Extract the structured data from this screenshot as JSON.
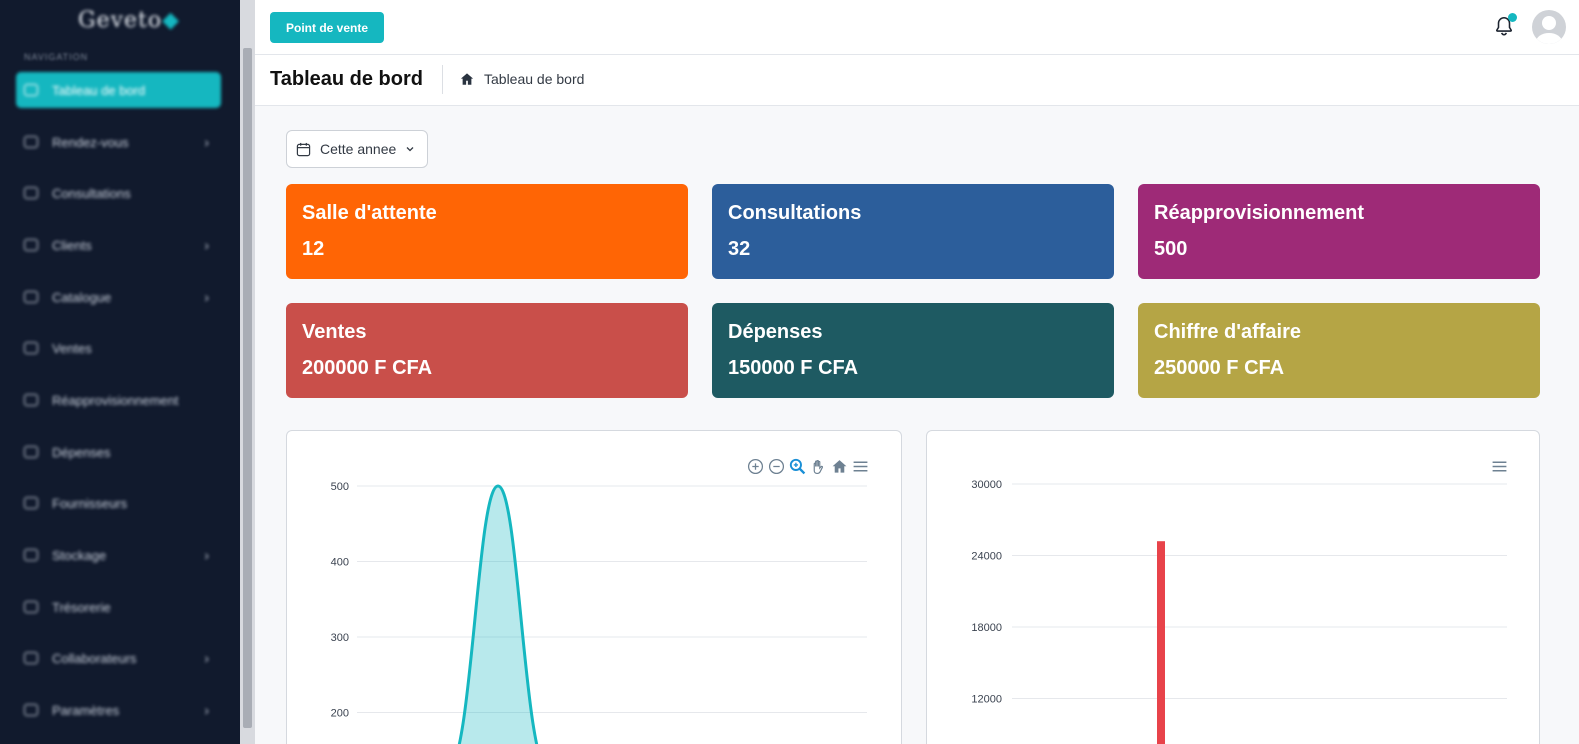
{
  "app": {
    "logo": "Geveto"
  },
  "sidebar": {
    "section": "NAVIGATION",
    "items": [
      {
        "label": "Tableau de bord",
        "active": true,
        "has_submenu": false
      },
      {
        "label": "Rendez-vous",
        "active": false,
        "has_submenu": true
      },
      {
        "label": "Consultations",
        "active": false,
        "has_submenu": false
      },
      {
        "label": "Clients",
        "active": false,
        "has_submenu": true
      },
      {
        "label": "Catalogue",
        "active": false,
        "has_submenu": true
      },
      {
        "label": "Ventes",
        "active": false,
        "has_submenu": false
      },
      {
        "label": "Réapprovisionnement",
        "active": false,
        "has_submenu": false
      },
      {
        "label": "Dépenses",
        "active": false,
        "has_submenu": false
      },
      {
        "label": "Fournisseurs",
        "active": false,
        "has_submenu": false
      },
      {
        "label": "Stockage",
        "active": false,
        "has_submenu": true
      },
      {
        "label": "Trésorerie",
        "active": false,
        "has_submenu": false
      },
      {
        "label": "Collaborateurs",
        "active": false,
        "has_submenu": true
      },
      {
        "label": "Paramètres",
        "active": false,
        "has_submenu": true
      }
    ]
  },
  "topbar": {
    "pos_label": "Point de vente",
    "notification_icon": "bell-icon",
    "avatar_icon": "user-avatar"
  },
  "page": {
    "title": "Tableau de bord",
    "breadcrumb": [
      {
        "icon": "home-icon",
        "label": "Tableau de bord"
      }
    ]
  },
  "filter": {
    "icon": "calendar-icon",
    "value": "Cette annee"
  },
  "cards": [
    {
      "title": "Salle d'attente",
      "value": "12",
      "color": "#ff6505"
    },
    {
      "title": "Consultations",
      "value": "32",
      "color": "#2c5e9b"
    },
    {
      "title": "Réapprovisionnement",
      "value": "500",
      "color": "#9e2a77"
    },
    {
      "title": "Ventes",
      "value": "200000 F CFA",
      "color": "#c94f4a"
    },
    {
      "title": "Dépenses",
      "value": "150000 F CFA",
      "color": "#1e5a62"
    },
    {
      "title": "Chiffre d'affaire",
      "value": "250000 F CFA",
      "color": "#b5a545"
    }
  ],
  "colors": {
    "accent": "#15b7c0",
    "sidebar_bg": "#111a2d",
    "bar": "#e8434a"
  },
  "chart_data": [
    {
      "type": "area",
      "y_ticks": [
        500,
        400,
        300,
        200
      ],
      "peak": {
        "value": 500
      },
      "toolbar": [
        "zoom-in-icon",
        "zoom-out-icon",
        "selection-zoom-icon",
        "pan-icon",
        "reset-home-icon",
        "menu-icon"
      ],
      "color": "#15b7c0"
    },
    {
      "type": "bar",
      "y_ticks": [
        30000,
        24000,
        18000,
        12000
      ],
      "series": [
        {
          "values": [
            25200
          ]
        }
      ],
      "toolbar": [
        "menu-icon"
      ],
      "color": "#e8434a"
    }
  ]
}
